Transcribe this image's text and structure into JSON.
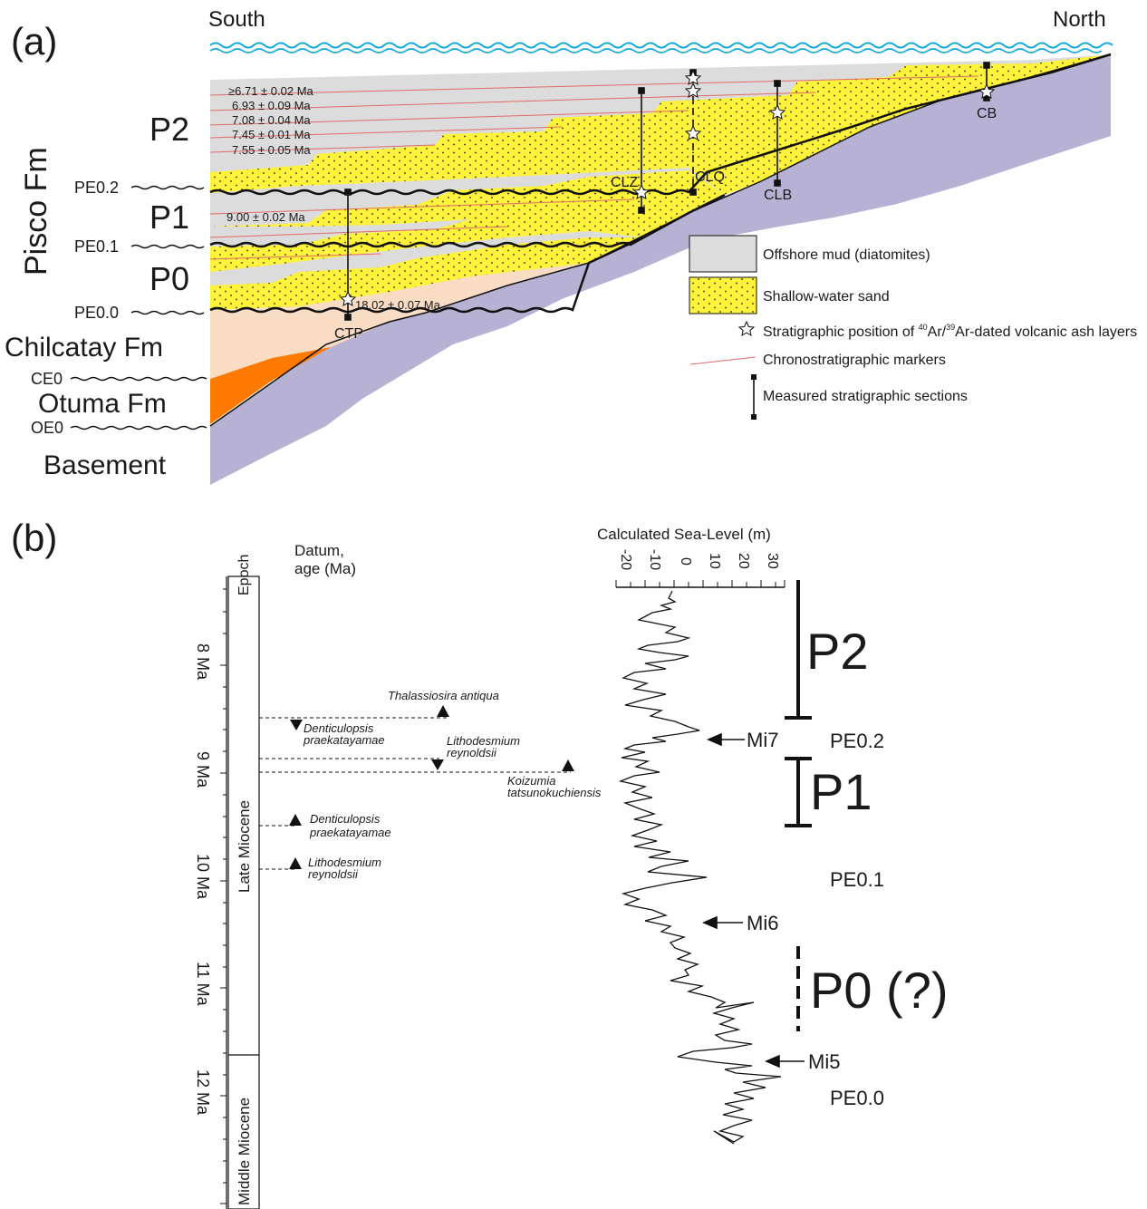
{
  "panel_a": {
    "label": "(a)",
    "south": "South",
    "north": "North",
    "formation": "Pisco Fm",
    "units": [
      "P2",
      "P1",
      "P0"
    ],
    "surfaces": [
      "PE0.2",
      "PE0.1",
      "PE0.0",
      "CE0",
      "OE0"
    ],
    "chilcatay": "Chilcatay Fm",
    "otuma": "Otuma Fm",
    "basement": "Basement",
    "ages": [
      "≥6.71 ± 0.02 Ma",
      "6.93 ± 0.09 Ma",
      "7.08 ± 0.04 Ma",
      "7.45 ± 0.01 Ma",
      "7.55 ± 0.05 Ma",
      "9.00 ± 0.02 Ma",
      "18.02 ± 0.07 Ma"
    ],
    "sections": [
      "CTP",
      "CLZ",
      "CLQ",
      "CLB",
      "CB"
    ],
    "legend": {
      "mud": "Offshore mud (diatomites)",
      "sand": "Shallow-water sand",
      "ash_pre": "Stratigraphic position of ",
      "ash_sup1": "40",
      "ash_mid": "Ar/",
      "ash_sup2": "39",
      "ash_post": "Ar-dated volcanic ash layers",
      "markers": "Chronostratigraphic markers",
      "sections": "Measured stratigraphic sections"
    },
    "colors": {
      "mud": "#dcdcdc",
      "sand": "#fff23a",
      "chilcatay": "#f8dcc4",
      "otuma": "#ff7a00",
      "basement": "#b7b1d3",
      "marker": "#e36a6a",
      "water": "#14a8d8"
    }
  },
  "panel_b": {
    "label": "(b)",
    "epoch_header": "Epoch",
    "datum_header": "Datum,\nage (Ma)",
    "age_ticks": [
      "8 Ma",
      "9 Ma",
      "10 Ma",
      "11 Ma",
      "12 Ma"
    ],
    "epochs": [
      "Late Miocene",
      "Middle Miocene"
    ],
    "datums": [
      {
        "name": "Thalassiosira antiqua",
        "age": 8.4,
        "type": "first"
      },
      {
        "name": "Denticulopsis praekatayamae",
        "age": 8.4,
        "type": "last"
      },
      {
        "name": "Lithodesmium reynoldsii",
        "age": 8.85,
        "type": "last"
      },
      {
        "name": "Koizumia tatsunokuchiensis",
        "age": 8.95,
        "type": "first"
      },
      {
        "name": "Denticulopsis praekatayamae",
        "age": 9.35,
        "type": "first"
      },
      {
        "name": "Lithodesmium reynoldsii",
        "age": 9.85,
        "type": "first"
      }
    ],
    "sea_level_title": "Calculated Sea-Level (m)",
    "sea_level_ticks": [
      "-20",
      "-10",
      "0",
      "10",
      "20",
      "30"
    ],
    "events": [
      "Mi7",
      "Mi6",
      "Mi5"
    ],
    "units": [
      "P2",
      "P1",
      "P0 (?)"
    ],
    "surfaces": [
      "PE0.2",
      "PE0.1",
      "PE0.0"
    ]
  }
}
